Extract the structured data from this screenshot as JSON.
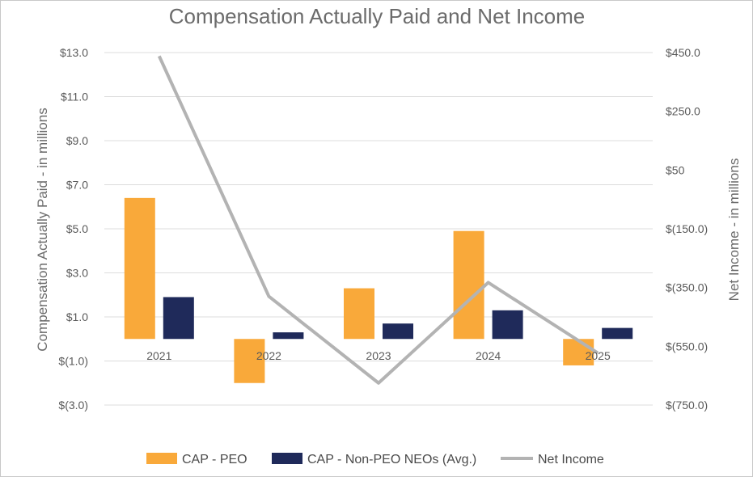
{
  "chart_data": {
    "type": "bar",
    "title": "Compensation Actually Paid and Net Income",
    "categories": [
      "2021",
      "2022",
      "2023",
      "2024",
      "2025"
    ],
    "y_left": {
      "label": "Compensation Actually Paid - in millions",
      "range": [
        -3,
        13
      ],
      "ticks": [
        13,
        11,
        9,
        7,
        5,
        3,
        1,
        -1,
        -3
      ],
      "tick_labels": [
        "$13.0",
        "$11.0",
        "$9.0",
        "$7.0",
        "$5.0",
        "$3.0",
        "$1.0",
        "$(1.0)",
        "$(3.0)"
      ]
    },
    "y_right": {
      "label": "Net Income - in millions",
      "range": [
        -750,
        450
      ],
      "ticks": [
        450,
        250,
        50,
        -150,
        -350,
        -550,
        -750
      ],
      "tick_labels": [
        "$450.0",
        "$250.0",
        "$50",
        "$(150.0)",
        "$(350.0)",
        "$(550.0)",
        "$(750.0)"
      ]
    },
    "series": [
      {
        "name": "CAP - PEO",
        "type": "bar",
        "axis": "left",
        "color": "#f9a93a",
        "values": [
          6.4,
          -2.0,
          2.3,
          4.9,
          -1.2
        ]
      },
      {
        "name": "CAP - Non-PEO NEOs (Avg.)",
        "type": "bar",
        "axis": "left",
        "color": "#1f2a5a",
        "values": [
          1.9,
          0.3,
          0.7,
          1.3,
          0.5
        ]
      },
      {
        "name": "Net Income",
        "type": "line",
        "axis": "right",
        "color": "#b3b3b3",
        "values": [
          438,
          -380,
          -675,
          -333,
          -573
        ]
      }
    ],
    "grid": true,
    "legend": "bottom"
  }
}
